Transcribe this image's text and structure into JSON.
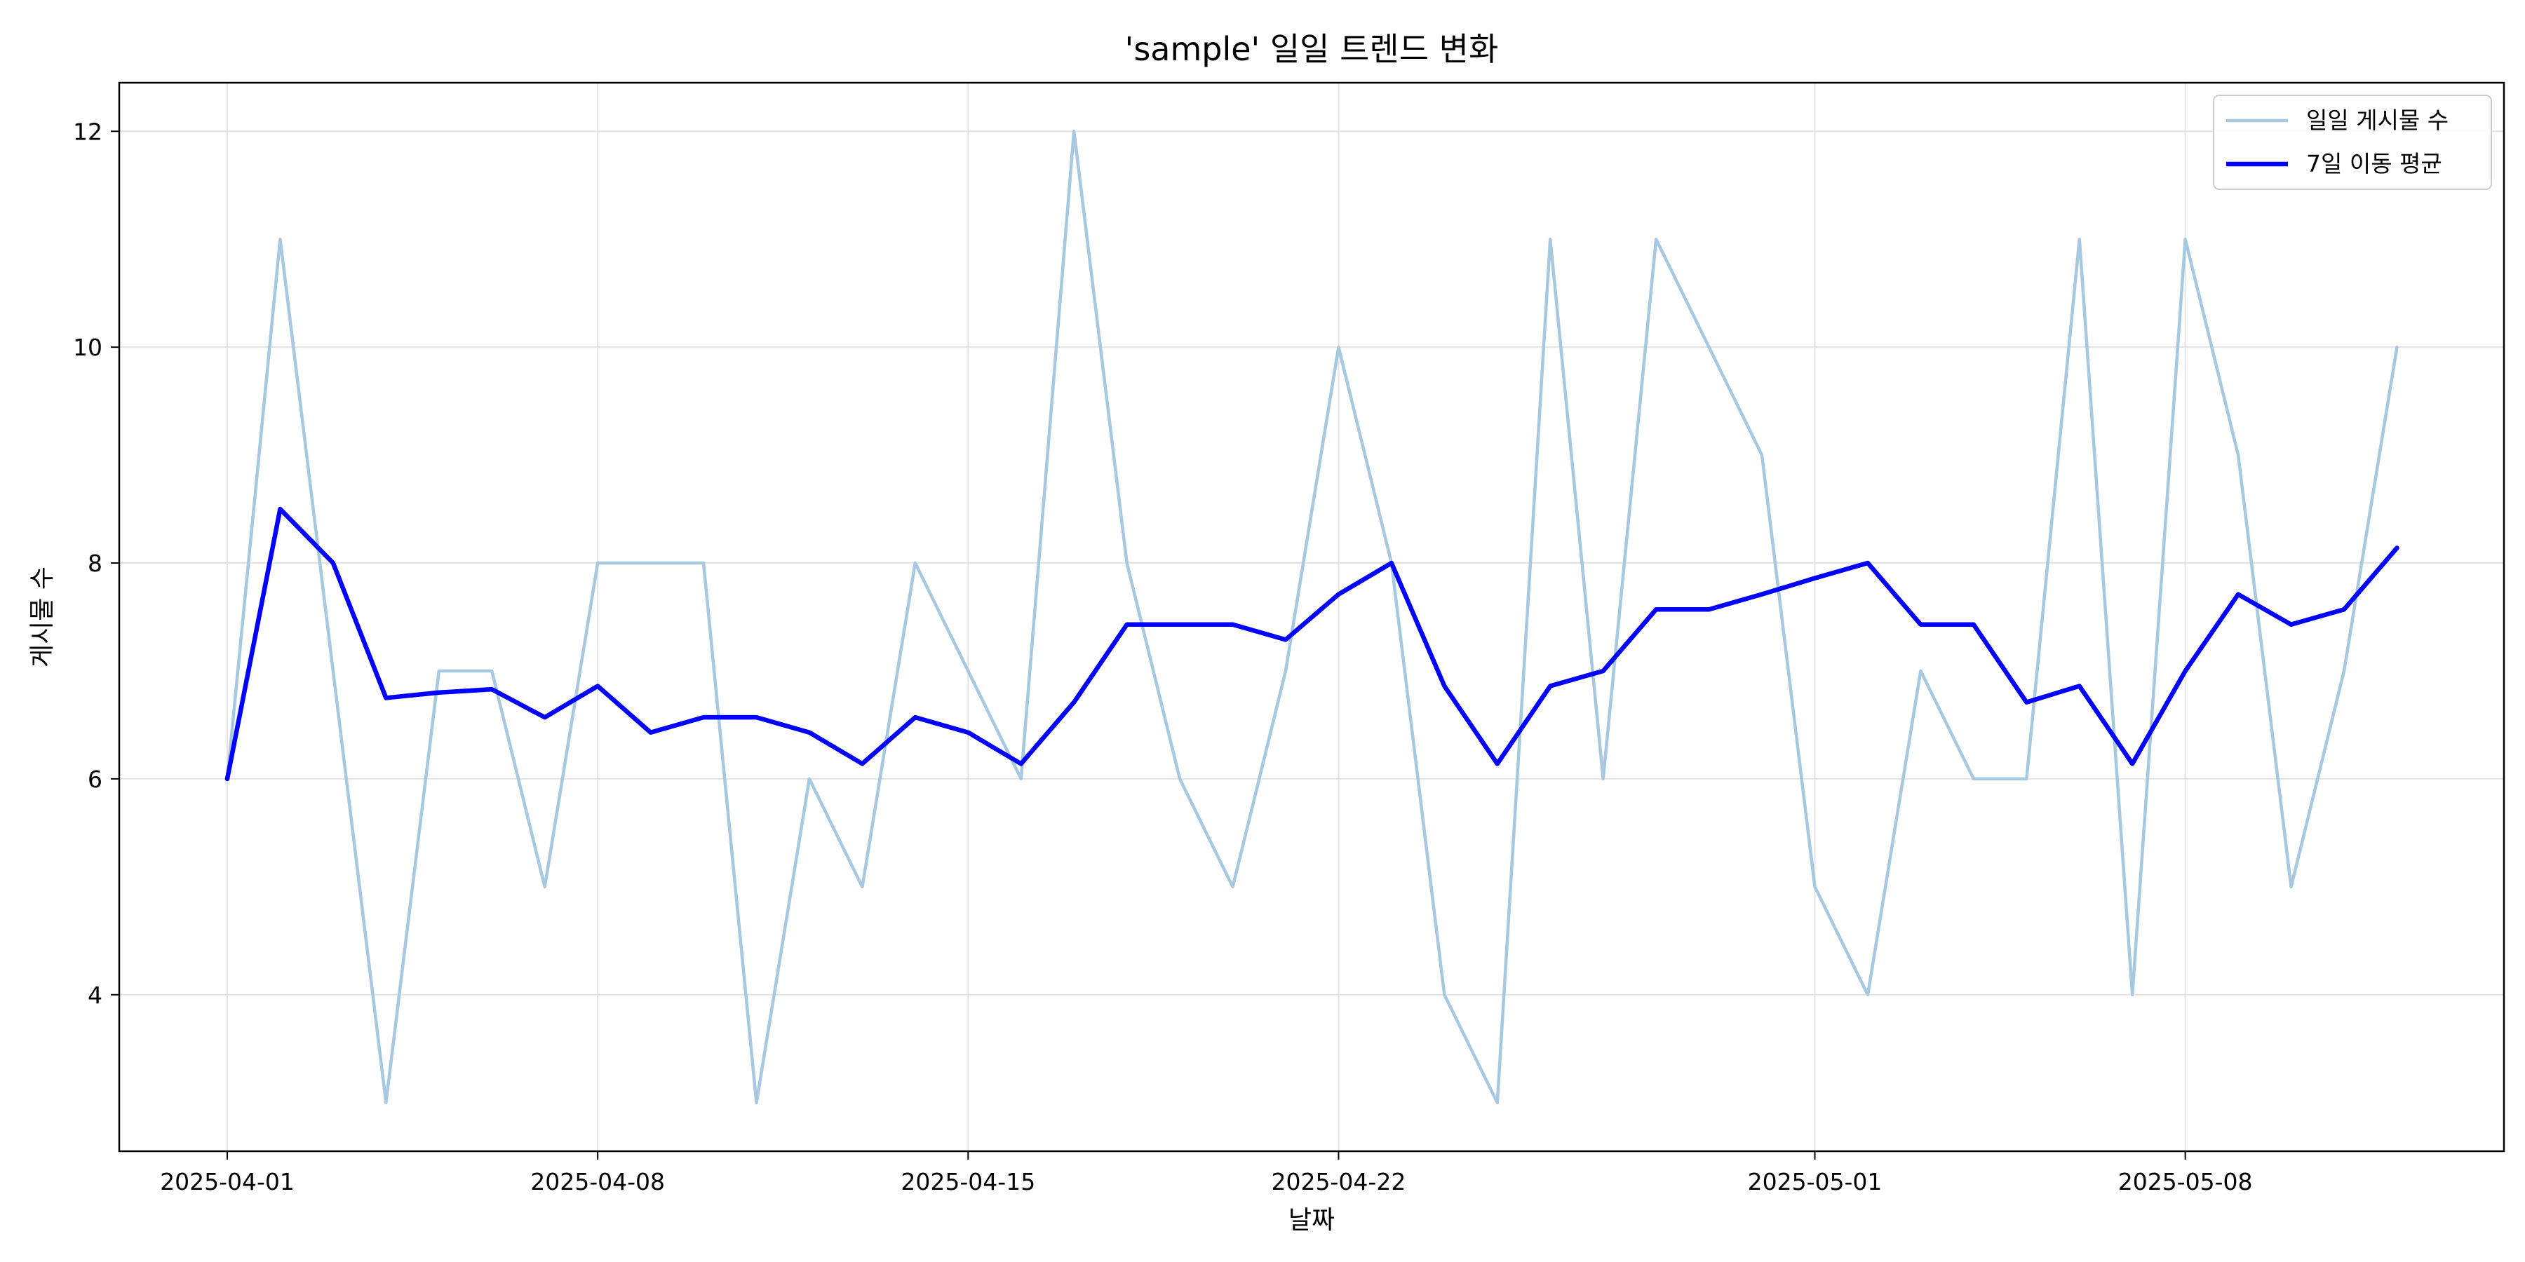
{
  "chart_data": {
    "type": "line",
    "title": "'sample' 일일 트렌드 변화",
    "xlabel": "날짜",
    "ylabel": "게시물 수",
    "x_start": "2025-04-01",
    "x": [
      "2025-04-01",
      "2025-04-02",
      "2025-04-03",
      "2025-04-04",
      "2025-04-05",
      "2025-04-06",
      "2025-04-07",
      "2025-04-08",
      "2025-04-09",
      "2025-04-10",
      "2025-04-11",
      "2025-04-12",
      "2025-04-13",
      "2025-04-14",
      "2025-04-15",
      "2025-04-16",
      "2025-04-17",
      "2025-04-18",
      "2025-04-19",
      "2025-04-20",
      "2025-04-21",
      "2025-04-22",
      "2025-04-23",
      "2025-04-24",
      "2025-04-25",
      "2025-04-26",
      "2025-04-27",
      "2025-04-28",
      "2025-04-29",
      "2025-04-30",
      "2025-05-01",
      "2025-05-02",
      "2025-05-03",
      "2025-05-04",
      "2025-05-05",
      "2025-05-06",
      "2025-05-07",
      "2025-05-08",
      "2025-05-09",
      "2025-05-10",
      "2025-05-11",
      "2025-05-12"
    ],
    "series": [
      {
        "name": "일일 게시물 수",
        "color": "#a6c8e0",
        "values": [
          6,
          11,
          7,
          3,
          7,
          7,
          5,
          8,
          8,
          8,
          3,
          6,
          5,
          8,
          7,
          6,
          12,
          8,
          6,
          5,
          7,
          10,
          8,
          4,
          3,
          11,
          6,
          11,
          10,
          9,
          5,
          4,
          7,
          6,
          6,
          11,
          4,
          11,
          9,
          5,
          7,
          10
        ]
      },
      {
        "name": "7일 이동 평균",
        "color": "#0000ff",
        "values": [
          6,
          8.5,
          8,
          6.75,
          6.8,
          6.83,
          6.57,
          6.86,
          6.43,
          6.57,
          6.57,
          6.43,
          6.14,
          6.57,
          6.43,
          6.14,
          6.71,
          7.43,
          7.43,
          7.43,
          7.29,
          7.71,
          8,
          6.86,
          6.14,
          6.86,
          7,
          7.57,
          7.57,
          7.71,
          7.86,
          8,
          7.43,
          7.43,
          6.71,
          6.86,
          6.14,
          7,
          7.71,
          7.43,
          7.57,
          8.14
        ]
      }
    ],
    "x_ticks": [
      "2025-04-01",
      "2025-04-08",
      "2025-04-15",
      "2025-04-22",
      "2025-05-01",
      "2025-05-08"
    ],
    "y_ticks": [
      4,
      6,
      8,
      10,
      12
    ],
    "ylim": [
      2.55,
      12.45
    ],
    "grid": true,
    "legend_position": "top-right"
  }
}
